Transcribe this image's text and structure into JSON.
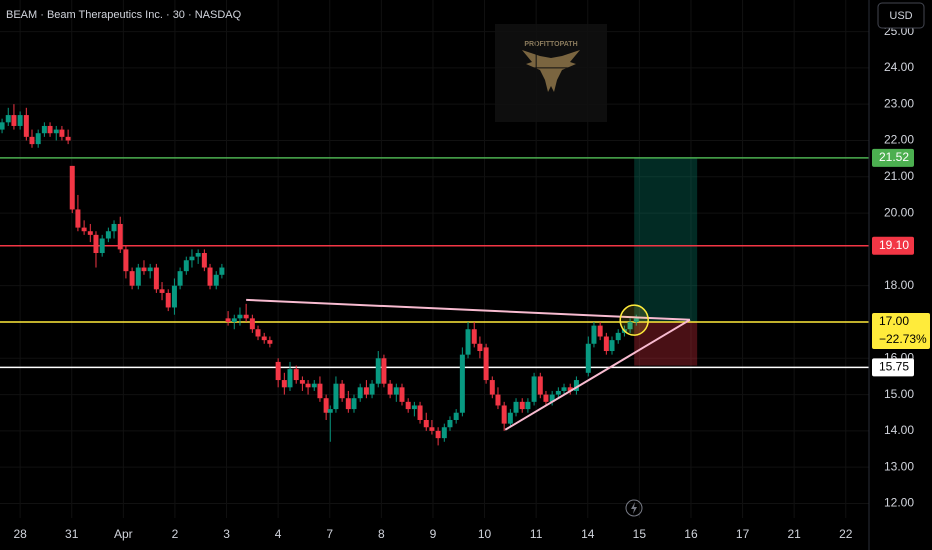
{
  "chart_data": {
    "type": "candlestick",
    "title": "BEAM · Beam Therapeutics Inc. · 30 · NASDAQ",
    "currency": "USD",
    "watermark": "PROFITTOPATH",
    "up_color": "#089981",
    "down_color": "#f23645",
    "xlim": [
      -0.39,
      16.45
    ],
    "ylim": [
      11.6,
      25.87
    ],
    "xticks": [
      {
        "value": 0,
        "label": "28"
      },
      {
        "value": 1,
        "label": "31"
      },
      {
        "value": 2,
        "label": "Apr"
      },
      {
        "value": 3,
        "label": "2"
      },
      {
        "value": 4,
        "label": "3"
      },
      {
        "value": 5,
        "label": "4"
      },
      {
        "value": 6,
        "label": "7"
      },
      {
        "value": 7,
        "label": "8"
      },
      {
        "value": 8,
        "label": "9"
      },
      {
        "value": 9,
        "label": "10"
      },
      {
        "value": 10,
        "label": "11"
      },
      {
        "value": 11,
        "label": "14"
      },
      {
        "value": 12,
        "label": "15"
      },
      {
        "value": 13,
        "label": "16"
      },
      {
        "value": 14,
        "label": "17"
      },
      {
        "value": 15,
        "label": "21"
      },
      {
        "value": 16,
        "label": "22"
      }
    ],
    "yticks": [
      {
        "value": 12,
        "label": "12.00"
      },
      {
        "value": 13,
        "label": "13.00"
      },
      {
        "value": 14,
        "label": "14.00"
      },
      {
        "value": 15,
        "label": "15.00"
      },
      {
        "value": 16,
        "label": "16.00"
      },
      {
        "value": 18,
        "label": "18.00"
      },
      {
        "value": 20,
        "label": "20.00"
      },
      {
        "value": 21,
        "label": "21.00"
      },
      {
        "value": 22,
        "label": "22.00"
      },
      {
        "value": 23,
        "label": "23.00"
      },
      {
        "value": 24,
        "label": "24.00"
      },
      {
        "value": 25,
        "label": "25.00"
      }
    ],
    "levels": [
      {
        "value": 21.52,
        "label": "21.52",
        "color": "#4caf50",
        "text_color": "#ffffff"
      },
      {
        "value": 19.1,
        "label": "19.10",
        "color": "#f23645",
        "text_color": "#ffffff"
      },
      {
        "value": 17.0,
        "label": "17.00",
        "change": "−22.73%",
        "color": "#ffeb3b",
        "text_color": "#000000"
      },
      {
        "value": 15.75,
        "label": "15.75",
        "color": "#ffffff",
        "text_color": "#000000"
      }
    ],
    "trendlines": [
      {
        "x": [
          4.38,
          12.98
        ],
        "y": [
          17.61,
          17.06
        ],
        "color": "#f8bbd0"
      },
      {
        "x": [
          9.4,
          12.98
        ],
        "y": [
          14.03,
          17.06
        ],
        "color": "#f8bbd0"
      }
    ],
    "position": {
      "x": [
        11.9,
        13.12
      ],
      "target": 21.52,
      "entry": 17.0,
      "stop": 15.8
    },
    "highlight": {
      "x": 11.9,
      "y": 17.05,
      "color": "#ffeb3b"
    },
    "candles": [
      [
        -0.35,
        22.3,
        22.6,
        22.2,
        22.5
      ],
      [
        -0.23,
        22.5,
        22.9,
        22.4,
        22.7
      ],
      [
        -0.12,
        22.7,
        23.0,
        22.3,
        22.4
      ],
      [
        0.0,
        22.4,
        22.8,
        22.3,
        22.7
      ],
      [
        0.12,
        22.7,
        22.9,
        22.0,
        22.1
      ],
      [
        0.23,
        22.1,
        22.3,
        21.8,
        21.9
      ],
      [
        0.35,
        21.9,
        22.3,
        21.8,
        22.2
      ],
      [
        0.47,
        22.2,
        22.5,
        22.1,
        22.4
      ],
      [
        0.58,
        22.4,
        22.5,
        22.1,
        22.2
      ],
      [
        0.7,
        22.2,
        22.4,
        22.0,
        22.3
      ],
      [
        0.81,
        22.3,
        22.4,
        22.0,
        22.1
      ],
      [
        0.93,
        22.1,
        22.3,
        21.9,
        22.0
      ],
      [
        1.01,
        21.3,
        21.3,
        20.0,
        20.1
      ],
      [
        1.12,
        20.1,
        20.5,
        19.5,
        19.6
      ],
      [
        1.24,
        19.6,
        19.8,
        19.4,
        19.5
      ],
      [
        1.36,
        19.5,
        19.7,
        19.2,
        19.4
      ],
      [
        1.47,
        19.4,
        19.5,
        18.5,
        18.9
      ],
      [
        1.59,
        18.9,
        19.4,
        18.8,
        19.3
      ],
      [
        1.71,
        19.3,
        19.6,
        19.2,
        19.5
      ],
      [
        1.82,
        19.5,
        19.8,
        19.3,
        19.7
      ],
      [
        1.94,
        19.7,
        19.9,
        18.9,
        19.0
      ],
      [
        2.05,
        19.0,
        19.1,
        18.2,
        18.4
      ],
      [
        2.17,
        18.4,
        18.5,
        17.9,
        18.0
      ],
      [
        2.29,
        18.0,
        18.6,
        17.9,
        18.5
      ],
      [
        2.4,
        18.5,
        18.7,
        18.3,
        18.4
      ],
      [
        2.52,
        18.4,
        18.6,
        18.2,
        18.5
      ],
      [
        2.64,
        18.5,
        18.6,
        17.8,
        17.9
      ],
      [
        2.75,
        17.9,
        18.1,
        17.6,
        17.8
      ],
      [
        2.87,
        17.8,
        17.9,
        17.3,
        17.4
      ],
      [
        2.99,
        17.4,
        18.2,
        17.2,
        18.0
      ],
      [
        3.1,
        18.0,
        18.5,
        17.9,
        18.4
      ],
      [
        3.22,
        18.4,
        18.8,
        18.3,
        18.7
      ],
      [
        3.33,
        18.7,
        19.0,
        18.5,
        18.8
      ],
      [
        3.45,
        18.8,
        19.0,
        18.6,
        18.9
      ],
      [
        3.57,
        18.9,
        19.0,
        18.4,
        18.5
      ],
      [
        3.68,
        18.5,
        18.6,
        17.9,
        18.0
      ],
      [
        3.8,
        18.0,
        18.4,
        17.9,
        18.3
      ],
      [
        3.91,
        18.3,
        18.6,
        18.2,
        18.5
      ],
      [
        4.03,
        17.1,
        17.3,
        16.9,
        17.0
      ],
      [
        4.15,
        17.0,
        17.2,
        16.8,
        17.1
      ],
      [
        4.26,
        17.1,
        17.4,
        16.9,
        17.2
      ],
      [
        4.38,
        17.2,
        17.5,
        17.0,
        17.1
      ],
      [
        4.5,
        17.1,
        17.2,
        16.7,
        16.8
      ],
      [
        4.61,
        16.8,
        16.9,
        16.5,
        16.6
      ],
      [
        4.73,
        16.6,
        16.7,
        16.4,
        16.5
      ],
      [
        4.84,
        16.5,
        16.6,
        16.3,
        16.4
      ],
      [
        5.0,
        15.9,
        16.0,
        15.2,
        15.4
      ],
      [
        5.12,
        15.4,
        15.6,
        15.0,
        15.2
      ],
      [
        5.23,
        15.2,
        15.9,
        15.1,
        15.7
      ],
      [
        5.35,
        15.7,
        15.8,
        15.3,
        15.4
      ],
      [
        5.47,
        15.4,
        15.5,
        15.1,
        15.3
      ],
      [
        5.58,
        15.3,
        15.4,
        15.0,
        15.2
      ],
      [
        5.7,
        15.2,
        15.4,
        15.1,
        15.3
      ],
      [
        5.81,
        15.3,
        15.5,
        14.8,
        14.9
      ],
      [
        5.93,
        14.9,
        15.0,
        14.3,
        14.5
      ],
      [
        6.01,
        14.5,
        14.7,
        13.7,
        14.6
      ],
      [
        6.12,
        14.6,
        15.5,
        14.5,
        15.3
      ],
      [
        6.24,
        15.3,
        15.4,
        14.8,
        14.9
      ],
      [
        6.36,
        14.9,
        15.1,
        14.5,
        14.6
      ],
      [
        6.47,
        14.6,
        15.0,
        14.5,
        14.9
      ],
      [
        6.59,
        14.9,
        15.3,
        14.8,
        15.2
      ],
      [
        6.71,
        15.2,
        15.4,
        14.9,
        15.0
      ],
      [
        6.82,
        15.0,
        15.4,
        14.9,
        15.3
      ],
      [
        6.94,
        15.3,
        16.2,
        15.2,
        16.0
      ],
      [
        7.05,
        16.0,
        16.1,
        15.2,
        15.3
      ],
      [
        7.17,
        15.3,
        15.4,
        14.9,
        15.0
      ],
      [
        7.29,
        15.0,
        15.3,
        14.8,
        15.2
      ],
      [
        7.4,
        15.2,
        15.3,
        14.7,
        14.8
      ],
      [
        7.52,
        14.8,
        14.9,
        14.5,
        14.6
      ],
      [
        7.64,
        14.6,
        14.8,
        14.4,
        14.7
      ],
      [
        7.75,
        14.7,
        14.8,
        14.2,
        14.3
      ],
      [
        7.87,
        14.3,
        14.5,
        14.0,
        14.1
      ],
      [
        7.98,
        14.1,
        14.3,
        13.9,
        14.0
      ],
      [
        8.1,
        14.0,
        14.1,
        13.6,
        13.8
      ],
      [
        8.22,
        13.8,
        14.2,
        13.7,
        14.1
      ],
      [
        8.33,
        14.1,
        14.4,
        14.0,
        14.3
      ],
      [
        8.45,
        14.3,
        14.6,
        14.2,
        14.5
      ],
      [
        8.57,
        14.5,
        16.3,
        14.4,
        16.1
      ],
      [
        8.68,
        16.1,
        17.0,
        16.0,
        16.8
      ],
      [
        8.8,
        16.8,
        17.0,
        16.3,
        16.4
      ],
      [
        8.91,
        16.4,
        16.6,
        16.0,
        16.2
      ],
      [
        9.03,
        16.3,
        16.4,
        15.3,
        15.4
      ],
      [
        9.15,
        15.4,
        15.5,
        14.9,
        15.0
      ],
      [
        9.26,
        15.0,
        15.2,
        14.6,
        14.7
      ],
      [
        9.38,
        14.7,
        14.8,
        14.0,
        14.2
      ],
      [
        9.5,
        14.2,
        14.6,
        14.1,
        14.5
      ],
      [
        9.61,
        14.5,
        14.9,
        14.4,
        14.8
      ],
      [
        9.73,
        14.8,
        14.9,
        14.5,
        14.6
      ],
      [
        9.84,
        14.6,
        14.9,
        14.5,
        14.8
      ],
      [
        9.96,
        14.8,
        15.6,
        14.7,
        15.5
      ],
      [
        10.08,
        15.5,
        15.6,
        14.9,
        15.0
      ],
      [
        10.19,
        15.0,
        15.1,
        14.7,
        14.8
      ],
      [
        10.31,
        14.8,
        15.1,
        14.7,
        15.0
      ],
      [
        10.43,
        15.0,
        15.2,
        14.9,
        15.1
      ],
      [
        10.54,
        15.1,
        15.3,
        15.0,
        15.2
      ],
      [
        10.66,
        15.2,
        15.3,
        15.0,
        15.1
      ],
      [
        10.78,
        15.1,
        15.5,
        15.0,
        15.4
      ],
      [
        11.01,
        15.6,
        16.6,
        15.5,
        16.4
      ],
      [
        11.12,
        16.4,
        17.0,
        16.3,
        16.9
      ],
      [
        11.24,
        16.9,
        17.0,
        16.5,
        16.6
      ],
      [
        11.36,
        16.6,
        16.7,
        16.1,
        16.2
      ],
      [
        11.47,
        16.2,
        16.6,
        16.1,
        16.5
      ],
      [
        11.59,
        16.5,
        16.8,
        16.4,
        16.7
      ],
      [
        11.71,
        16.7,
        16.9,
        16.6,
        16.8
      ],
      [
        11.82,
        16.8,
        17.1,
        16.7,
        17.0
      ],
      [
        11.94,
        17.0,
        17.2,
        16.9,
        17.1
      ]
    ]
  }
}
